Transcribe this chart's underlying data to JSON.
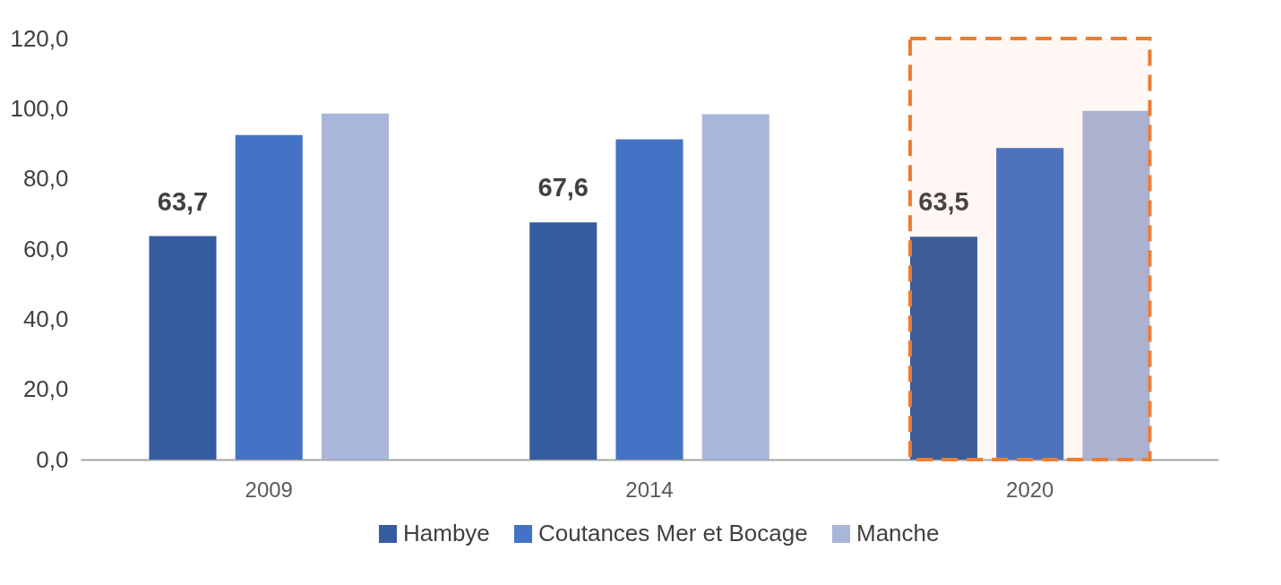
{
  "chart_data": {
    "type": "bar",
    "categories": [
      "2009",
      "2014",
      "2020"
    ],
    "series": [
      {
        "name": "Hambye",
        "color": "#355c9f",
        "values": [
          63.7,
          67.6,
          63.5
        ],
        "value_labels": [
          "63,7",
          "67,6",
          "63,5"
        ]
      },
      {
        "name": "Coutances Mer et Bocage",
        "color": "#4472c4",
        "values": [
          92.5,
          91.3,
          88.8
        ]
      },
      {
        "name": "Manche",
        "color": "#a9b5da",
        "values": [
          98.6,
          98.4,
          99.4
        ]
      }
    ],
    "ylim": [
      0,
      120
    ],
    "yticks": [
      {
        "value": 0,
        "label": "0,0"
      },
      {
        "value": 20,
        "label": "20,0"
      },
      {
        "value": 40,
        "label": "40,0"
      },
      {
        "value": 60,
        "label": "60,0"
      },
      {
        "value": 80,
        "label": "80,0"
      },
      {
        "value": 100,
        "label": "100,0"
      },
      {
        "value": 120,
        "label": "120,0"
      }
    ],
    "grid": false,
    "legend": "bottom",
    "bands": [
      {
        "axis": "x",
        "from": "2020",
        "to": "2020",
        "color": "#ed7d31"
      }
    ]
  }
}
